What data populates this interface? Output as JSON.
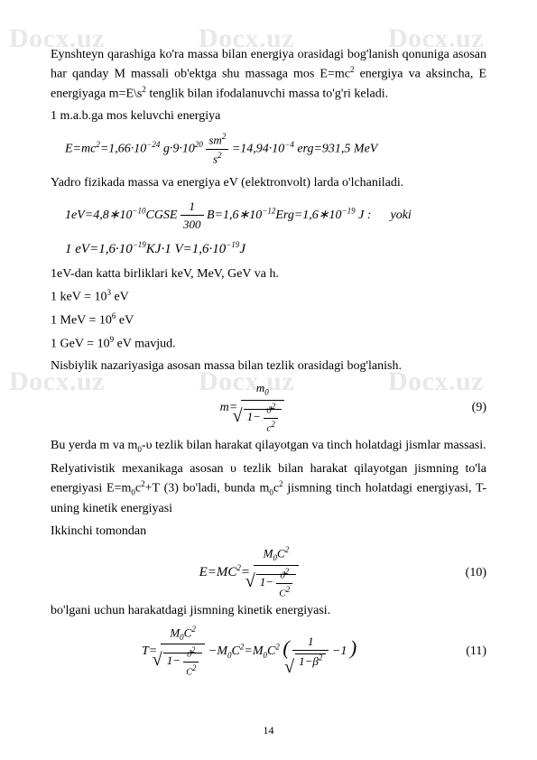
{
  "watermark": "Docx.uz",
  "page_number": "14",
  "paragraphs": {
    "p1": "Eynshteyn qarashiga ko'ra massa bilan energiya orasidagi bog'lanish qonuniga asosan har qanday M massali ob'ektga shu massaga mos E=mc",
    "p1_sup": "2",
    "p1_cont": " energiya va aksincha, E energiyaga m=E\\s",
    "p1_sup2": "2",
    "p1_end": " tenglik bilan ifodalanuvchi massa to'g'ri keladi.",
    "p2": "1 m.a.b.ga mos keluvchi energiya",
    "p3": "Yadro fizikada massa va energiya eV (elektronvolt) larda o'lchaniladi.",
    "p4": "1eV-dan katta birliklari keV, MeV, GeV va h.",
    "p5": "Nisbiylik nazariyasiga asosan massa bilan tezlik orasidagi bog'lanish.",
    "p6a": "Bu yerda m va m",
    "p6b": "-υ tezlik bilan harakat qilayotgan va tinch holatdagi jismlar massasi.",
    "p7": "Relyativistik mexanikaga asosan υ tezlik bilan harakat qilayotgan jismning to'la energiyasi E=m",
    "p7b": "c",
    "p7c": "+T (3) bo'ladi, bunda m",
    "p7d": "c",
    "p7e": " jismning tinch holatdagi energiyasi, T-uning kinetik energiyasi",
    "p8": "Ikkinchi tomondan",
    "p9": "bo'lgani uchun harakatdagi jismning kinetik energiyasi."
  },
  "units": {
    "kev": "1 keV = 10",
    "kev_exp": "3",
    "kev_end": " eV",
    "mev": "1 MeV = 10",
    "mev_exp": "6",
    "mev_end": " eV",
    "gev": "1 GeV = 10",
    "gev_exp": "9",
    "gev_end": " eV mavjud."
  },
  "formulas": {
    "f1_lhs": "E=mc",
    "f1_exp1": "2",
    "f1_eq": "=1,66·10",
    "f1_exp2": "−24",
    "f1_g": " g·9·10",
    "f1_exp3": "20",
    "f1_frac_num": "sm",
    "f1_frac_num_exp": "2",
    "f1_frac_den": "s",
    "f1_frac_den_exp": "2",
    "f1_mid": "=14,94·10",
    "f1_exp4": "−4",
    "f1_end": " erg=931,5 MeV",
    "f2_a": "1eV=4,8∗10",
    "f2_exp1": "−10",
    "f2_b": "CGSE",
    "f2_frac_num": "1",
    "f2_frac_den": "300",
    "f2_c": " B=1,6∗10",
    "f2_exp2": "−12",
    "f2_d": "Erg=1,6∗10",
    "f2_exp3": "−19",
    "f2_e": " J :",
    "f2_yoki": "yoki",
    "f3": "1 eV=1,6·10",
    "f3_exp": "−19",
    "f3_mid": "KJ·1 V=1,6·10",
    "f3_exp2": "−19",
    "f3_end": "J",
    "f4_m": "m=",
    "f4_num": "m",
    "f4_num_sub": "0",
    "f4_den1": "1−",
    "f4_den_num": "ϑ",
    "f4_den_num_exp": "2",
    "f4_den_den": "c",
    "f4_den_den_exp": "2",
    "f5_lhs": "E=MC",
    "f5_exp": "2",
    "f5_eq": "=",
    "f5_num": "M",
    "f5_num_sub": "0",
    "f5_num_c": "C",
    "f5_num_exp": "2",
    "f5_den1": "1−",
    "f5_den_num": "ϑ",
    "f5_den_num_exp": "2",
    "f5_den_den": "C",
    "f5_den_den_exp": "2",
    "f6_lhs": "T=",
    "f6_num": "M",
    "f6_sub0": "0",
    "f6_c": "C",
    "f6_exp2": "2",
    "f6_minus": "−M",
    "f6_ceq": "=M",
    "f6_paren_num": "1",
    "f6_paren_den1": "1−β",
    "f6_minus1": "−1"
  },
  "eq_nums": {
    "e9": "(9)",
    "e10": "(10)",
    "e11": "(11)"
  }
}
